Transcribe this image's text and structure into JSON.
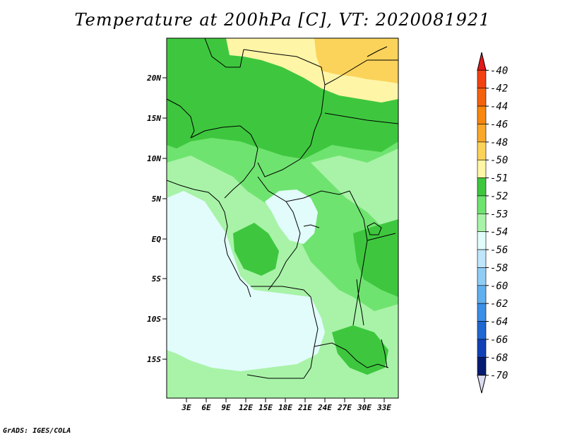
{
  "title": "Temperature at 200hPa [C], VT: 2020081921",
  "credit": "GrADS: IGES/COLA",
  "lat_labels": [
    "20N",
    "15N",
    "10N",
    "5N",
    "EQ",
    "5S",
    "10S",
    "15S"
  ],
  "lon_labels": [
    "3E",
    "6E",
    "9E",
    "12E",
    "15E",
    "18E",
    "21E",
    "24E",
    "27E",
    "30E",
    "33E"
  ],
  "colorbar": {
    "labels": [
      "-40",
      "-42",
      "-44",
      "-46",
      "-48",
      "-50",
      "-51",
      "-52",
      "-53",
      "-54",
      "-56",
      "-58",
      "-60",
      "-62",
      "-64",
      "-66",
      "-68",
      "-70"
    ],
    "colors": [
      "#e31a1c",
      "#f2420f",
      "#f5620f",
      "#f7870f",
      "#f9a82a",
      "#fbd35a",
      "#fef5a6",
      "#3ec73e",
      "#6fe36f",
      "#a8f3a8",
      "#e2fcfc",
      "#bfe6fb",
      "#8fcdf7",
      "#62aff0",
      "#3c8ee6",
      "#2067d2",
      "#1241b6",
      "#061a72",
      "#0a0a5a"
    ],
    "top_arrow_color": "#e31a1c",
    "bottom_arrow_color": "#dcdcf2"
  },
  "field_colors": {
    "c_minus50_minus48": "#fbd35a",
    "c_minus51_minus50": "#fef5a6",
    "c_minus52_minus51": "#3ec73e",
    "c_minus53_minus52": "#6fe36f",
    "c_minus54_minus53": "#a8f3a8",
    "c_minus56_minus54": "#e2fcfc"
  }
}
